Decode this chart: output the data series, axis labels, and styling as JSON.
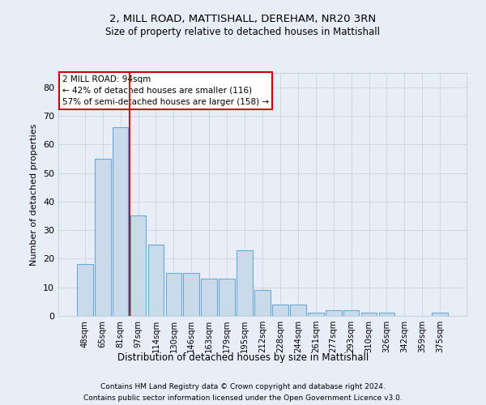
{
  "title_line1": "2, MILL ROAD, MATTISHALL, DEREHAM, NR20 3RN",
  "title_line2": "Size of property relative to detached houses in Mattishall",
  "xlabel": "Distribution of detached houses by size in Mattishall",
  "ylabel": "Number of detached properties",
  "categories": [
    "48sqm",
    "65sqm",
    "81sqm",
    "97sqm",
    "114sqm",
    "130sqm",
    "146sqm",
    "163sqm",
    "179sqm",
    "195sqm",
    "212sqm",
    "228sqm",
    "244sqm",
    "261sqm",
    "277sqm",
    "293sqm",
    "310sqm",
    "326sqm",
    "342sqm",
    "359sqm",
    "375sqm"
  ],
  "bar_heights": [
    18,
    55,
    66,
    35,
    25,
    15,
    15,
    13,
    13,
    23,
    9,
    4,
    4,
    1,
    2,
    2,
    1,
    1,
    0,
    0,
    1
  ],
  "bar_color": "#c9daea",
  "bar_edge_color": "#6aaad4",
  "grid_color": "#c8d4e0",
  "annotation_text_line1": "2 MILL ROAD: 94sqm",
  "annotation_text_line2": "← 42% of detached houses are smaller (116)",
  "annotation_text_line3": "57% of semi-detached houses are larger (158) →",
  "annotation_box_facecolor": "#ffffff",
  "annotation_box_edgecolor": "#cc0000",
  "red_line_color": "#cc0000",
  "ylim": [
    0,
    85
  ],
  "yticks": [
    0,
    10,
    20,
    30,
    40,
    50,
    60,
    70,
    80
  ],
  "footnote_line1": "Contains HM Land Registry data © Crown copyright and database right 2024.",
  "footnote_line2": "Contains public sector information licensed under the Open Government Licence v3.0.",
  "background_color": "#e8eef8",
  "plot_background_color": "#e8eef8"
}
